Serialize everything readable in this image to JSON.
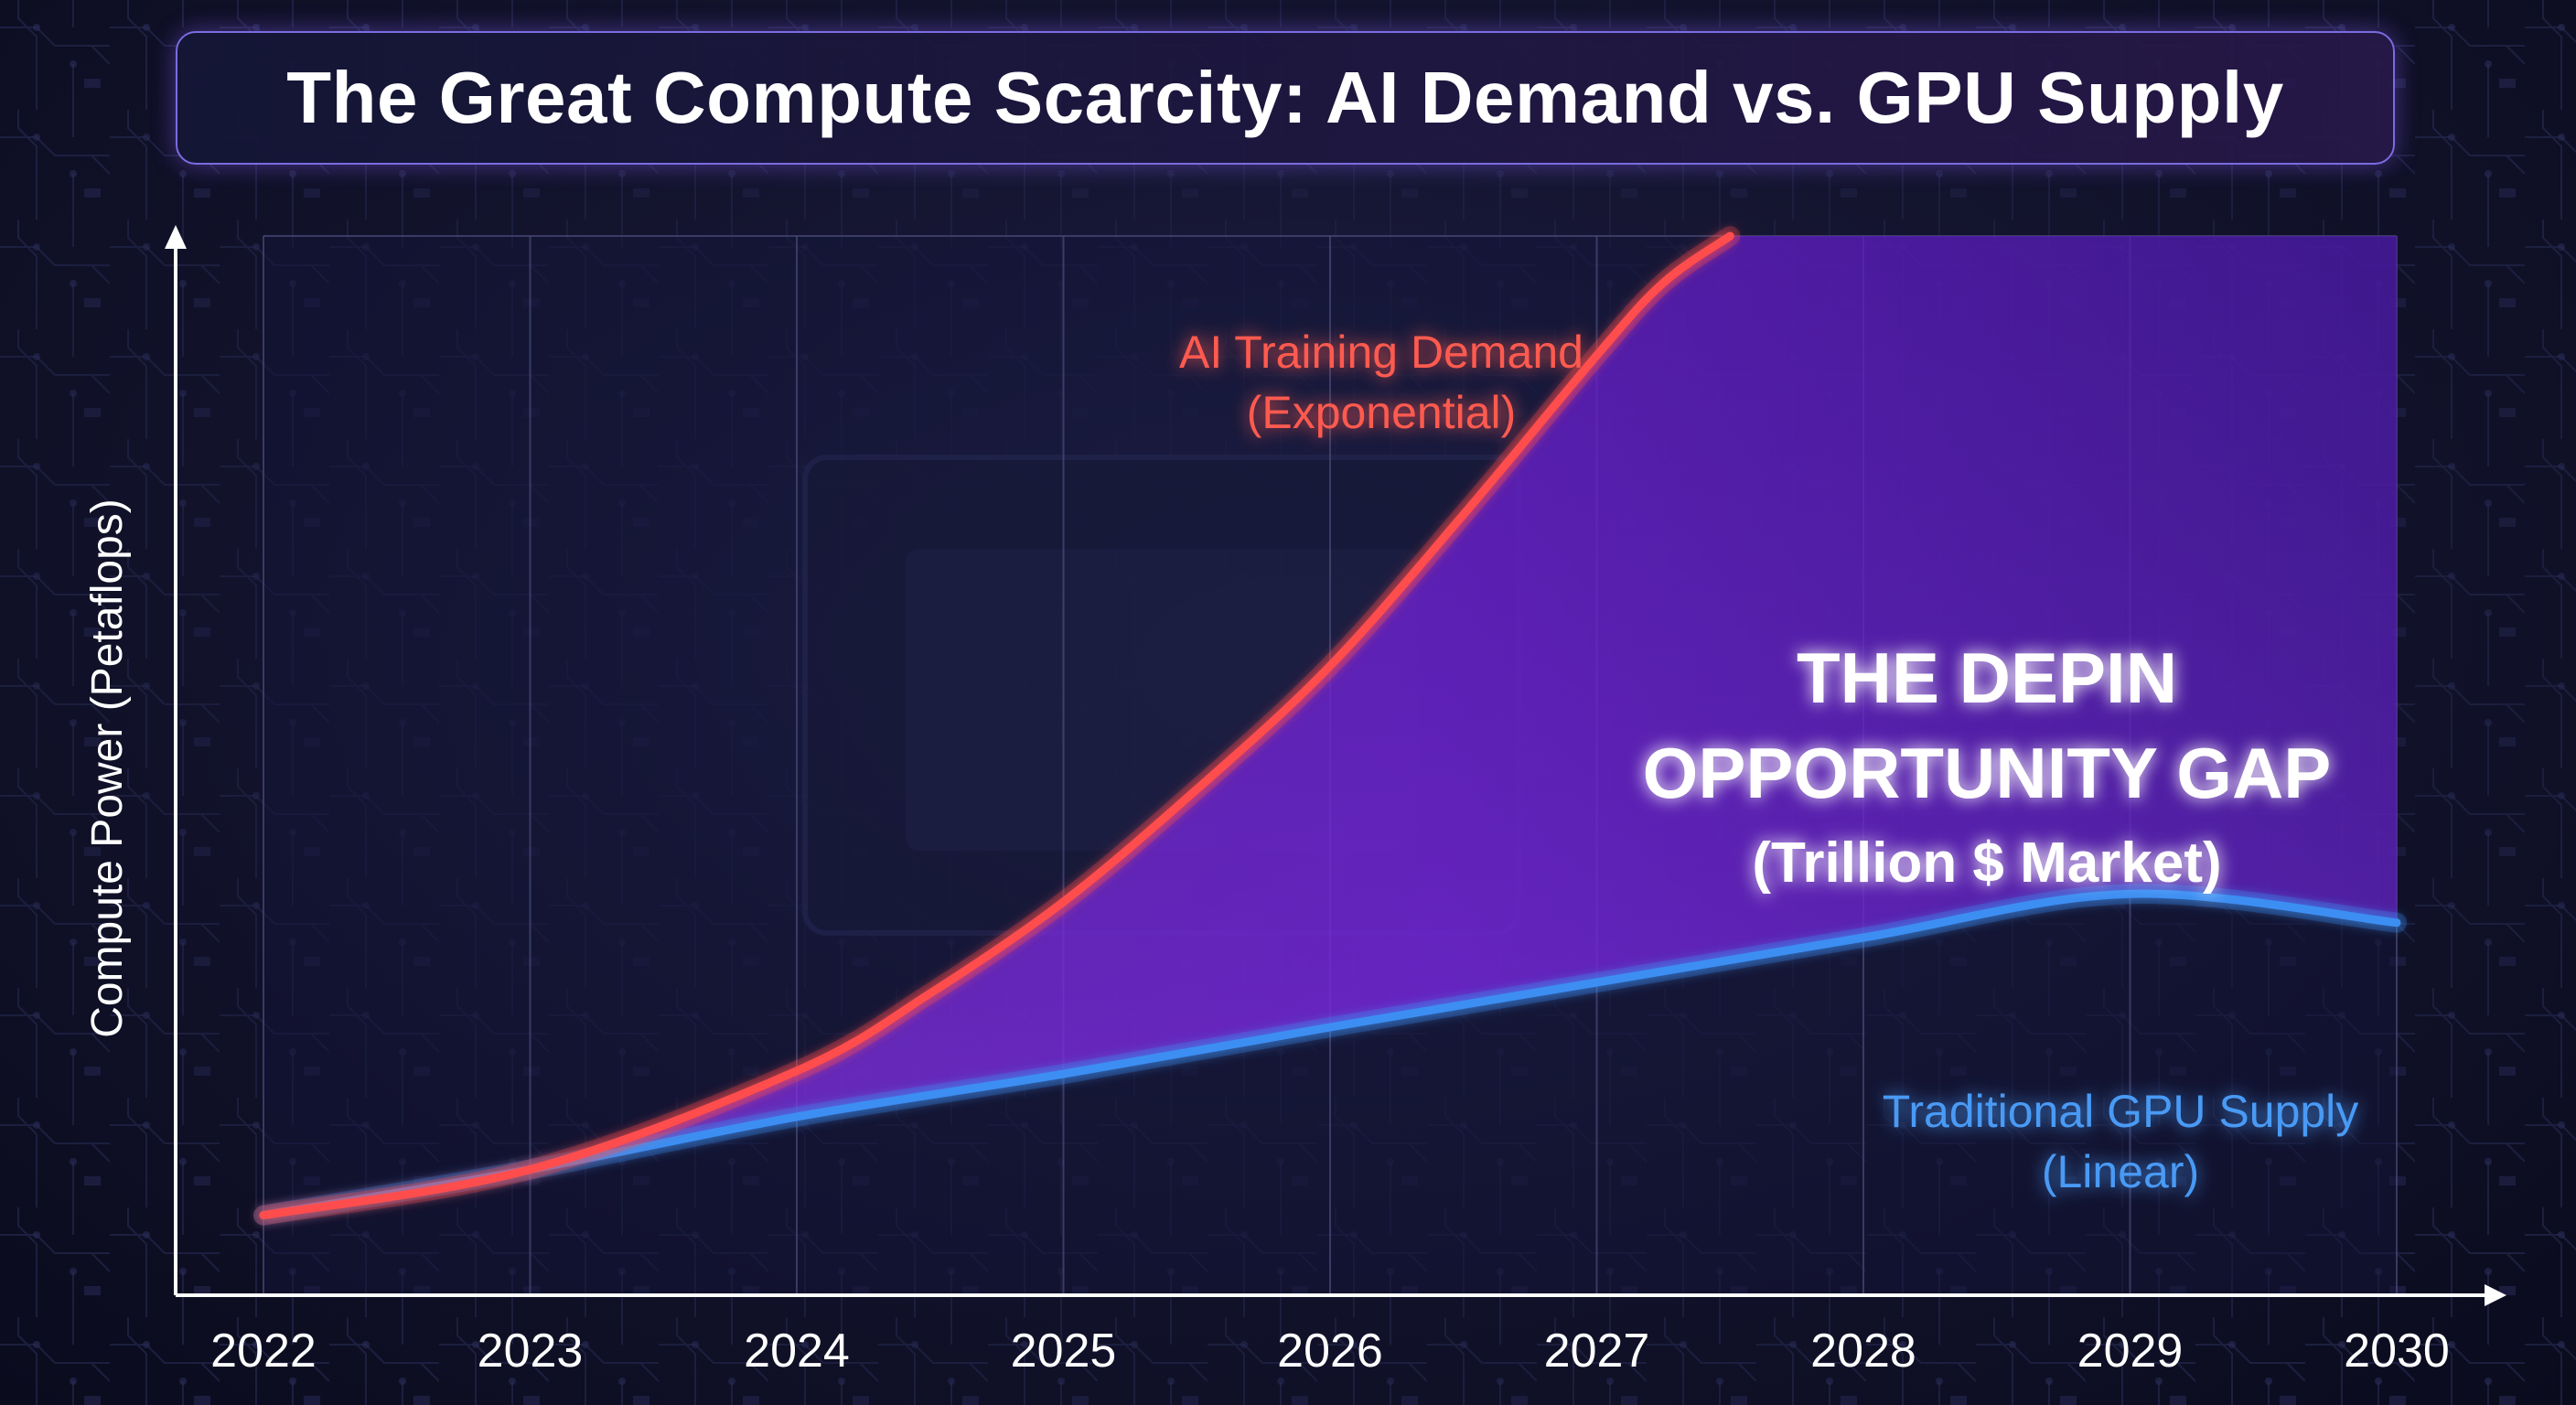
{
  "chart_data": {
    "type": "line",
    "title": "The Great Compute Scarcity: AI Demand vs. GPU Supply",
    "xlabel": "",
    "ylabel": "Compute Power (Petaflops)",
    "categories": [
      "2022",
      "2023",
      "2024",
      "2025",
      "2026",
      "2027",
      "2028",
      "2029",
      "2030"
    ],
    "x": [
      2022,
      2023,
      2024,
      2025,
      2026,
      2027,
      2028,
      2029,
      2030
    ],
    "ylim": [
      0,
      100
    ],
    "series": [
      {
        "name": "AI Training Demand",
        "label_lines": [
          "AI Training Demand",
          "(Exponential)"
        ],
        "color": "#ff4d4d",
        "x": [
          2022,
          2023,
          2024,
          2024.5,
          2025,
          2025.5,
          2026,
          2026.5,
          2027,
          2027.25,
          2027.5
        ],
        "values": [
          1.6,
          6.2,
          16.1,
          23.9,
          33.1,
          44.4,
          56.8,
          72.0,
          88.0,
          95.3,
          100
        ]
      },
      {
        "name": "Traditional GPU Supply",
        "label_lines": [
          "Traditional GPU Supply",
          "(Linear)"
        ],
        "color": "#3d8ef2",
        "x": [
          2022,
          2023,
          2024,
          2025,
          2026,
          2027,
          2028,
          2029,
          2030
        ],
        "values": [
          1.6,
          6.2,
          11.5,
          15.8,
          20.5,
          25.0,
          29.5,
          33.9,
          30.2
        ]
      }
    ],
    "annotations": [
      {
        "name": "depin-gap",
        "lines": [
          "THE DEPIN",
          "OPPORTUNITY GAP",
          "(Trillion $ Market)"
        ]
      }
    ],
    "grid": true,
    "legend": "inline"
  }
}
